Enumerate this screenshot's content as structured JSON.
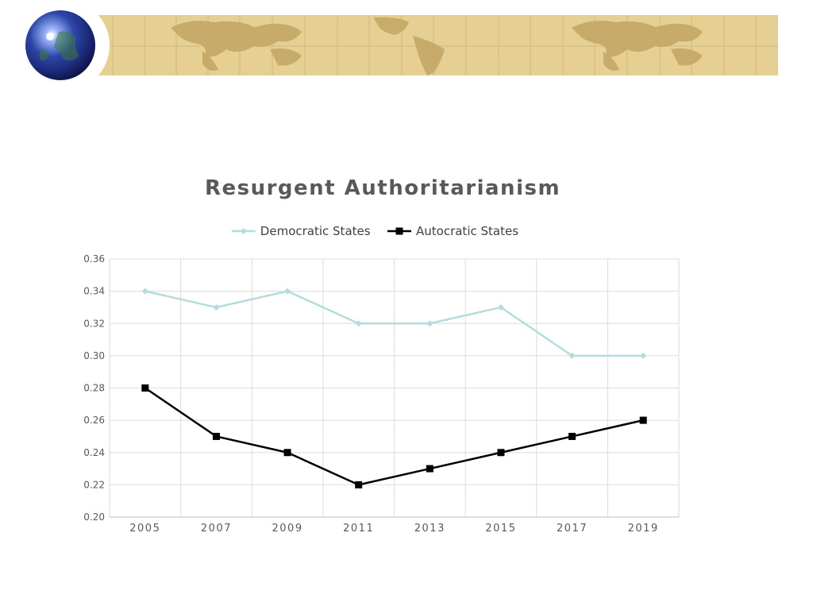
{
  "chart_data": {
    "type": "line",
    "title": "Resurgent Authoritarianism",
    "categories": [
      "2005",
      "2007",
      "2009",
      "2011",
      "2013",
      "2015",
      "2017",
      "2019"
    ],
    "series": [
      {
        "name": "Democratic States",
        "values": [
          0.34,
          0.33,
          0.34,
          0.32,
          0.32,
          0.33,
          0.3,
          0.3
        ],
        "color": "#b4dcdc",
        "marker": "diamond"
      },
      {
        "name": "Autocratic States",
        "values": [
          0.28,
          0.25,
          0.24,
          0.22,
          0.23,
          0.24,
          0.25,
          0.26
        ],
        "color": "#000000",
        "marker": "square"
      }
    ],
    "ylim": [
      0.2,
      0.36
    ],
    "yticks": [
      "0.20",
      "0.22",
      "0.24",
      "0.26",
      "0.28",
      "0.30",
      "0.32",
      "0.34",
      "0.36"
    ],
    "xlabel": "",
    "ylabel": "",
    "grid": true,
    "legend_position": "top"
  }
}
